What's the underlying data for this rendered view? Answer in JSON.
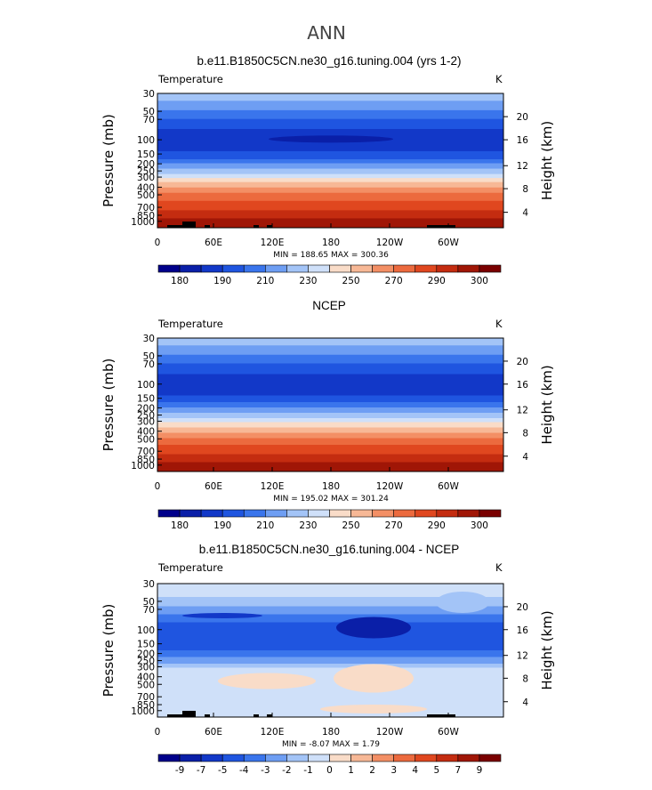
{
  "figure": {
    "title": "ANN"
  },
  "chart_data": [
    {
      "type": "heatmap",
      "title": "b.e11.B1850C5CN.ne30_g16.tuning.004 (yrs 1-2)",
      "variable_label": "Temperature",
      "units_label": "K",
      "ylabel_left": "Pressure  (mb)",
      "ylabel_right": "Height  (km)",
      "x_ticks": [
        "0",
        "60E",
        "120E",
        "180",
        "120W",
        "60W"
      ],
      "y_ticks_pressure": [
        "30",
        "50",
        "70",
        "100",
        "150",
        "200",
        "250",
        "300",
        "400",
        "500",
        "700",
        "850",
        "1000"
      ],
      "y_ticks_height": [
        "20",
        "16",
        "12",
        "8",
        "4"
      ],
      "stats": "MIN = 188.65   MAX = 300.36",
      "colorbar_labels": [
        "180",
        "190",
        "210",
        "230",
        "250",
        "270",
        "290",
        "300"
      ],
      "colorbar_levels": [
        180,
        185,
        190,
        200,
        210,
        220,
        230,
        240,
        250,
        260,
        270,
        280,
        290,
        295,
        300
      ],
      "min": 188.65,
      "max": 300.36
    },
    {
      "type": "heatmap",
      "title": "NCEP",
      "variable_label": "Temperature",
      "units_label": "K",
      "ylabel_left": "Pressure  (mb)",
      "ylabel_right": "Height  (km)",
      "x_ticks": [
        "0",
        "60E",
        "120E",
        "180",
        "120W",
        "60W"
      ],
      "y_ticks_pressure": [
        "30",
        "50",
        "70",
        "100",
        "150",
        "200",
        "250",
        "300",
        "400",
        "500",
        "700",
        "850",
        "1000"
      ],
      "y_ticks_height": [
        "20",
        "16",
        "12",
        "8",
        "4"
      ],
      "stats": "MIN = 195.02   MAX = 301.24",
      "colorbar_labels": [
        "180",
        "190",
        "210",
        "230",
        "250",
        "270",
        "290",
        "300"
      ],
      "colorbar_levels": [
        180,
        185,
        190,
        200,
        210,
        220,
        230,
        240,
        250,
        260,
        270,
        280,
        290,
        295,
        300
      ],
      "min": 195.02,
      "max": 301.24
    },
    {
      "type": "heatmap",
      "title": "b.e11.B1850C5CN.ne30_g16.tuning.004 - NCEP",
      "variable_label": "Temperature",
      "units_label": "K",
      "ylabel_left": "Pressure  (mb)",
      "ylabel_right": "Height  (km)",
      "x_ticks": [
        "0",
        "60E",
        "120E",
        "180",
        "120W",
        "60W"
      ],
      "y_ticks_pressure": [
        "30",
        "50",
        "70",
        "100",
        "150",
        "200",
        "250",
        "300",
        "400",
        "500",
        "700",
        "850",
        "1000"
      ],
      "y_ticks_height": [
        "20",
        "16",
        "12",
        "8",
        "4"
      ],
      "stats": "MIN = -8.07   MAX =   1.79",
      "colorbar_labels": [
        "-9",
        "-7",
        "-5",
        "-4",
        "-3",
        "-2",
        "-1",
        "0",
        "1",
        "2",
        "3",
        "4",
        "5",
        "7",
        "9"
      ],
      "colorbar_levels": [
        -9,
        -8,
        -7,
        -6,
        -5,
        -4,
        -3,
        -2,
        -1,
        0,
        1,
        2,
        3,
        4,
        5,
        7,
        9
      ],
      "min": -8.07,
      "max": 1.79
    }
  ],
  "colors": {
    "palette": [
      "#00008b",
      "#0a1fa8",
      "#1238c8",
      "#1f55e0",
      "#3a75ec",
      "#6e9ef3",
      "#a3c4f7",
      "#cfe0f9",
      "#f9dcc8",
      "#f7b896",
      "#f38f65",
      "#ec6a3e",
      "#e0471f",
      "#c42c10",
      "#a01606",
      "#7a0000"
    ],
    "topography": "#000000"
  }
}
